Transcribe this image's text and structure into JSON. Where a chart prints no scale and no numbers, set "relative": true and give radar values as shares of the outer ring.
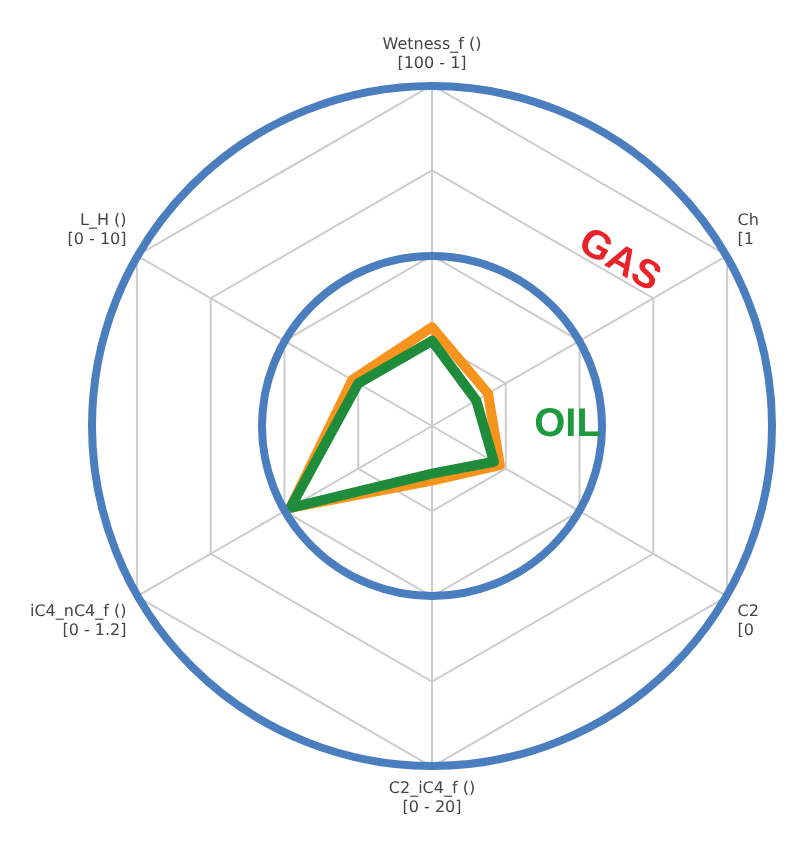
{
  "chart_data": {
    "type": "radar",
    "relative": true,
    "grid": true,
    "legend": false,
    "categories": [
      "Wetness_f ()\n[100 - 1]",
      "Ch\n[1",
      "C2\n[0",
      "C2_iC4_f ()\n[0 - 20]",
      "iC4_nC4_f ()\n[0 - 1.2]",
      "L_H ()\n[0 - 10]"
    ],
    "series": [
      {
        "color": "#1e8c3a",
        "values": [
          0.25,
          0.15,
          0.21,
          0.14,
          0.48,
          0.25
        ]
      },
      {
        "color": "#f7941d",
        "values": [
          0.29,
          0.19,
          0.23,
          0.16,
          0.48,
          0.27
        ]
      }
    ],
    "annotations": [
      "GAS",
      "OIL"
    ]
  }
}
